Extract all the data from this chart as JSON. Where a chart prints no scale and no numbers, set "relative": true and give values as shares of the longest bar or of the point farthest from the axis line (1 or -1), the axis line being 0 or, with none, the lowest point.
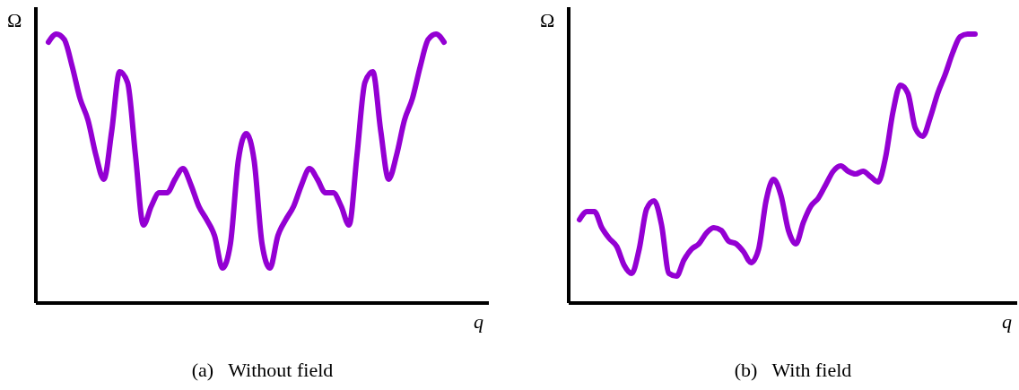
{
  "chart_data": [
    {
      "type": "line",
      "title": "(a)   Without field",
      "xlabel": "q",
      "ylabel": "Ω",
      "relative": true,
      "marker": "none",
      "line_style": "solid",
      "categories": [
        null,
        null,
        null,
        null,
        null,
        null,
        null,
        null,
        null,
        null,
        null,
        null,
        null,
        null,
        null,
        null,
        null,
        null,
        null,
        null,
        null,
        null,
        null,
        null,
        null,
        null,
        null,
        null,
        null,
        null,
        null,
        null,
        null,
        null,
        null,
        null,
        null,
        null,
        null,
        null,
        null,
        null,
        null,
        null,
        null,
        null,
        null,
        null,
        null,
        null,
        null
      ],
      "series": [
        {
          "color": "#9400d3",
          "values": [
            0.97,
            1,
            0.98,
            0.88,
            0.76,
            0.68,
            0.55,
            0.46,
            0.64,
            0.86,
            0.82,
            0.55,
            0.29,
            0.36,
            0.41,
            0.41,
            0.46,
            0.5,
            0.44,
            0.36,
            0.31,
            0.25,
            0.13,
            0.22,
            0.53,
            0.63,
            0.53,
            0.22,
            0.13,
            0.25,
            0.31,
            0.36,
            0.44,
            0.5,
            0.46,
            0.41,
            0.41,
            0.36,
            0.29,
            0.55,
            0.82,
            0.86,
            0.64,
            0.46,
            0.55,
            0.68,
            0.76,
            0.88,
            0.98,
            1,
            0.97
          ]
        }
      ]
    },
    {
      "type": "line",
      "title": "(b)   With field",
      "xlabel": "q",
      "ylabel": "Ω",
      "relative": true,
      "marker": "none",
      "line_style": "solid",
      "categories": [
        null,
        null,
        null,
        null,
        null,
        null,
        null,
        null,
        null,
        null,
        null,
        null,
        null,
        null,
        null,
        null,
        null,
        null,
        null,
        null,
        null,
        null,
        null,
        null,
        null,
        null,
        null,
        null,
        null,
        null,
        null,
        null,
        null,
        null,
        null,
        null,
        null,
        null,
        null,
        null,
        null,
        null,
        null,
        null,
        null,
        null,
        null,
        null,
        null,
        null,
        null,
        null,
        null,
        null
      ],
      "series": [
        {
          "color": "#9400d3",
          "values": [
            0.31,
            0.34,
            0.34,
            0.28,
            0.24,
            0.21,
            0.14,
            0.11,
            0.2,
            0.35,
            0.38,
            0.29,
            0.11,
            0.1,
            0.16,
            0.2,
            0.22,
            0.26,
            0.28,
            0.27,
            0.23,
            0.22,
            0.19,
            0.15,
            0.2,
            0.38,
            0.46,
            0.4,
            0.27,
            0.22,
            0.3,
            0.36,
            0.39,
            0.44,
            0.49,
            0.51,
            0.49,
            0.48,
            0.49,
            0.47,
            0.45,
            0.54,
            0.71,
            0.81,
            0.78,
            0.65,
            0.62,
            0.69,
            0.78,
            0.85,
            0.93,
            0.99,
            1,
            1
          ]
        }
      ]
    }
  ]
}
